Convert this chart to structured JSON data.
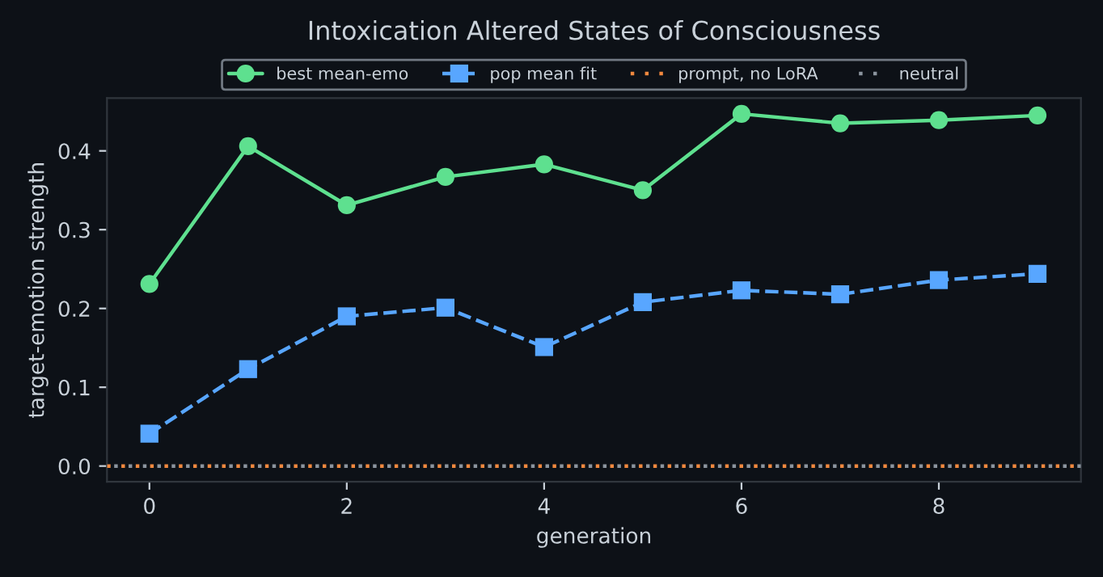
{
  "chart_data": {
    "type": "line",
    "title": "Intoxication Altered States of Consciousness",
    "xlabel": "generation",
    "ylabel": "target-emotion strength",
    "x": [
      0,
      1,
      2,
      3,
      4,
      5,
      6,
      7,
      8,
      9
    ],
    "series": [
      {
        "name": "best mean-emo",
        "color": "#5ee08f",
        "marker": "circle",
        "line_style": "solid",
        "values": [
          0.231,
          0.406,
          0.331,
          0.367,
          0.383,
          0.35,
          0.447,
          0.435,
          0.439,
          0.445
        ]
      },
      {
        "name": "pop mean fit",
        "color": "#58a6ff",
        "marker": "square",
        "line_style": "dashed",
        "values": [
          0.041,
          0.123,
          0.19,
          0.201,
          0.151,
          0.208,
          0.223,
          0.218,
          0.236,
          0.244
        ]
      }
    ],
    "ref_lines": [
      {
        "axis": "y",
        "value": 0,
        "label": "prompt, no LoRA",
        "color": "#f0883e",
        "line_style": "dotted"
      },
      {
        "axis": "y",
        "value": 0,
        "label": "neutral",
        "color": "#8b949e",
        "line_style": "dotted"
      }
    ],
    "xlim": [
      -0.43,
      9.44
    ],
    "ylim": [
      -0.02,
      0.467
    ],
    "xticks": [
      0,
      2,
      4,
      6,
      8
    ],
    "yticks": [
      {
        "value": 0,
        "label": "0.0"
      },
      0.1,
      0.2,
      0.3,
      0.4
    ],
    "grid": false,
    "legend": "top"
  }
}
